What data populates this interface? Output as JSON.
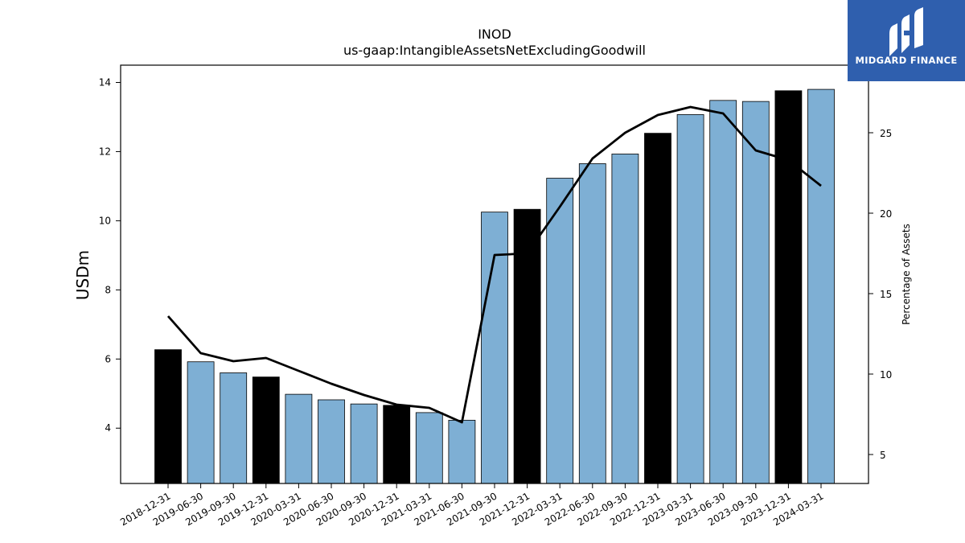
{
  "chart_data": {
    "type": "bar",
    "title": "INOD",
    "subtitle": "us-gaap:IntangibleAssetsNetExcludingGoodwill",
    "ylabel": "USDm",
    "y2label": "Percentage of Assets",
    "ylim": [
      2.4,
      14.5
    ],
    "y2lim": [
      3.2,
      29.2
    ],
    "yticks": [
      4,
      6,
      8,
      10,
      12,
      14
    ],
    "y2ticks": [
      5,
      10,
      15,
      20,
      25
    ],
    "categories": [
      "2018-12-31",
      "2019-06-30",
      "2019-09-30",
      "2019-12-31",
      "2020-03-31",
      "2020-06-30",
      "2020-09-30",
      "2020-12-31",
      "2021-03-31",
      "2021-06-30",
      "2021-09-30",
      "2021-12-31",
      "2022-03-31",
      "2022-06-30",
      "2022-09-30",
      "2022-12-31",
      "2023-03-31",
      "2023-06-30",
      "2023-09-30",
      "2023-12-31",
      "2024-03-31"
    ],
    "series": [
      {
        "type": "bar",
        "axis": "left",
        "values": [
          6.27,
          5.92,
          5.6,
          5.48,
          4.98,
          4.82,
          4.7,
          4.66,
          4.45,
          4.23,
          10.25,
          10.33,
          11.23,
          11.65,
          11.93,
          12.53,
          13.07,
          13.48,
          13.45,
          13.76,
          13.8
        ],
        "annual_flags": [
          true,
          false,
          false,
          true,
          false,
          false,
          false,
          true,
          false,
          false,
          false,
          true,
          false,
          false,
          false,
          true,
          false,
          false,
          false,
          true,
          false
        ]
      },
      {
        "type": "line",
        "axis": "right",
        "values": [
          13.6,
          11.3,
          10.8,
          11.0,
          10.2,
          9.4,
          8.7,
          8.1,
          7.9,
          7.0,
          17.4,
          17.5,
          20.4,
          23.4,
          25.0,
          26.1,
          26.6,
          26.2,
          23.9,
          23.3,
          21.7
        ]
      }
    ],
    "colors": {
      "bar_quarter": "#7eafd4",
      "bar_annual": "#000000",
      "line": "#000000"
    }
  },
  "logo": {
    "text": "MIDGARD FINANCE",
    "background": "#2f5fae"
  }
}
